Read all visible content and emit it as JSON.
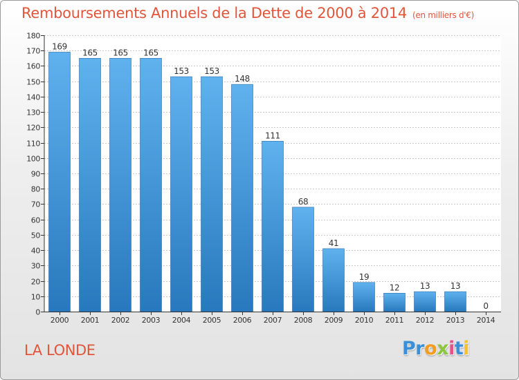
{
  "colors": {
    "accent": "#e2553a",
    "bar_light": "#5fb2ee",
    "bar_dark": "#2878bd"
  },
  "logo": {
    "letters": [
      {
        "char": "P",
        "color": "#3a8fd8"
      },
      {
        "char": "r",
        "color": "#3a8fd8"
      },
      {
        "char": "o",
        "color": "#f29d1f"
      },
      {
        "char": "x",
        "color": "#8cc63f"
      },
      {
        "char": "i",
        "color": "#e94f8a"
      },
      {
        "char": "t",
        "color": "#3a8fd8"
      },
      {
        "char": "i",
        "color": "#f2c230"
      }
    ]
  },
  "chart_data": {
    "type": "bar",
    "title": "Remboursements Annuels de la Dette de 2000 à 2014",
    "subtitle": "(en milliers d'€)",
    "categories": [
      "2000",
      "2001",
      "2002",
      "2003",
      "2004",
      "2005",
      "2006",
      "2007",
      "2008",
      "2009",
      "2010",
      "2011",
      "2012",
      "2013",
      "2014"
    ],
    "values": [
      169,
      165,
      165,
      165,
      153,
      153,
      148,
      111,
      68,
      41,
      19,
      12,
      13,
      13,
      0
    ],
    "ylim": [
      0,
      180
    ],
    "yticks": [
      0,
      10,
      20,
      30,
      40,
      50,
      60,
      70,
      80,
      90,
      100,
      110,
      120,
      130,
      140,
      150,
      160,
      170,
      180
    ],
    "xlabel": "",
    "ylabel": "",
    "grid": true,
    "footer_label": "LA LONDE"
  }
}
